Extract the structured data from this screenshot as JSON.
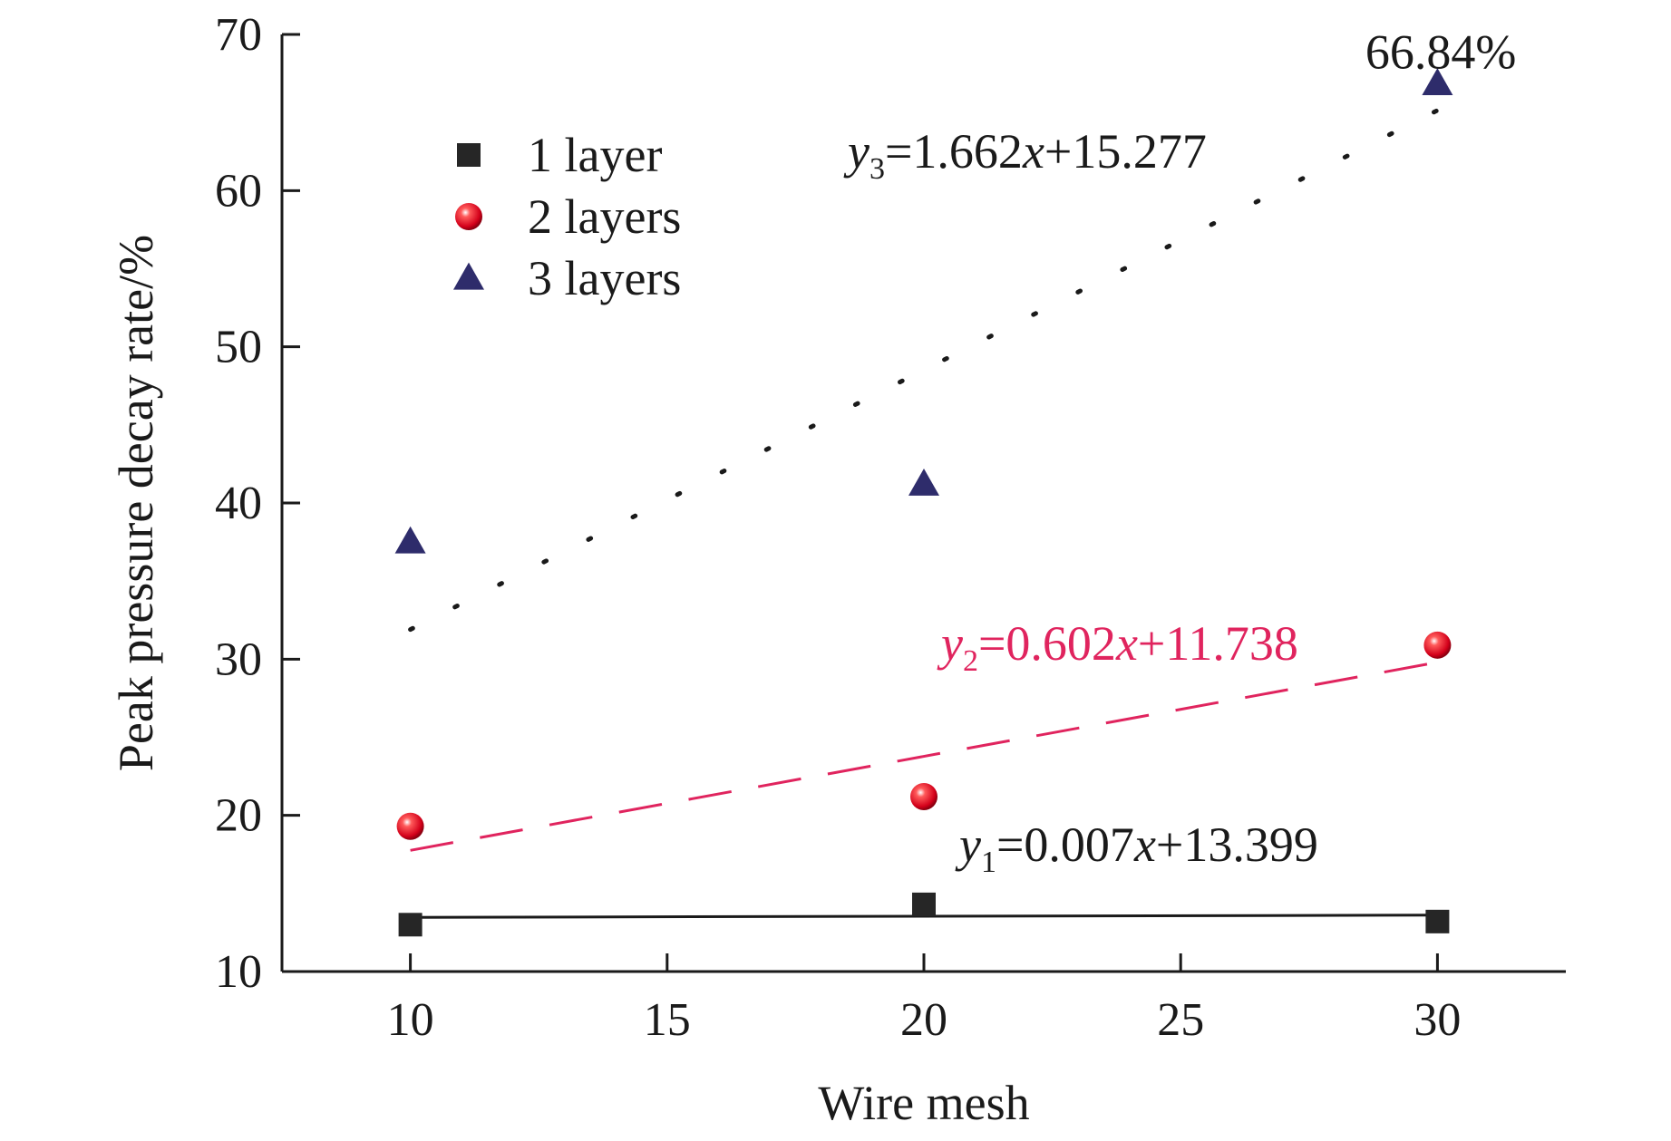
{
  "chart_data": {
    "type": "scatter",
    "xlabel": "Wire mesh",
    "ylabel": "Peak pressure decay rate/%",
    "xlim": [
      7.5,
      32.5
    ],
    "ylim": [
      10,
      70
    ],
    "xticks": [
      10,
      15,
      20,
      25,
      30
    ],
    "yticks": [
      10,
      20,
      30,
      40,
      50,
      60,
      70
    ],
    "legend_position": "top-left",
    "grid": false,
    "series": [
      {
        "name": "1 layer",
        "marker": "square",
        "color": "#262626",
        "x": [
          10,
          20,
          30
        ],
        "y": [
          13.0,
          14.3,
          13.2
        ],
        "fit": {
          "slope": 0.007,
          "intercept": 13.399,
          "style": "solid",
          "var": "y",
          "sub": "1",
          "rhs": "=0.007",
          "xvar": "x",
          "tail": "+13.399"
        }
      },
      {
        "name": "2 layers",
        "marker": "sphere",
        "color": "#e11d2e",
        "x": [
          10,
          20,
          30
        ],
        "y": [
          19.3,
          21.2,
          30.9
        ],
        "fit": {
          "slope": 0.602,
          "intercept": 11.738,
          "style": "dashed",
          "var": "y",
          "sub": "2",
          "rhs": "=0.602",
          "xvar": "x",
          "tail": "+11.738"
        }
      },
      {
        "name": "3 layers",
        "marker": "triangle",
        "color": "#2e2c6b",
        "x": [
          10,
          20,
          30
        ],
        "y": [
          37.5,
          41.2,
          66.84
        ],
        "fit": {
          "slope": 1.662,
          "intercept": 15.277,
          "style": "dotted",
          "var": "y",
          "sub": "3",
          "rhs": "=1.662",
          "xvar": "x",
          "tail": "+15.277"
        }
      }
    ],
    "annotations": [
      {
        "text": "66.84%",
        "x": 30,
        "y": 66.84
      }
    ]
  },
  "colors": {
    "eq2": "#e0245e",
    "axis": "#1a1a1a"
  }
}
